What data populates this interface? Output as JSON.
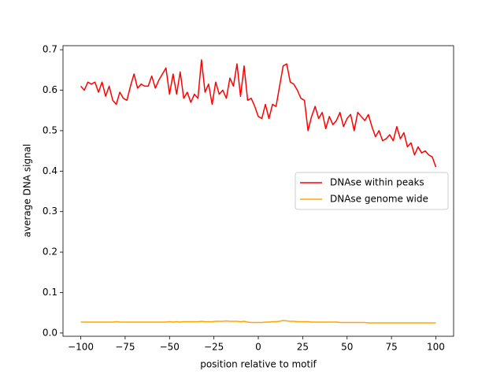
{
  "chart_data": {
    "type": "line",
    "xlabel": "position relative to motif",
    "ylabel": "average DNA signal",
    "x": [
      -100,
      -98,
      -96,
      -94,
      -92,
      -90,
      -88,
      -86,
      -84,
      -82,
      -80,
      -78,
      -76,
      -74,
      -72,
      -70,
      -68,
      -66,
      -64,
      -62,
      -60,
      -58,
      -56,
      -54,
      -52,
      -50,
      -48,
      -46,
      -44,
      -42,
      -40,
      -38,
      -36,
      -34,
      -32,
      -30,
      -28,
      -26,
      -24,
      -22,
      -20,
      -18,
      -16,
      -14,
      -12,
      -10,
      -8,
      -6,
      -4,
      -2,
      0,
      2,
      4,
      6,
      8,
      10,
      12,
      14,
      16,
      18,
      20,
      22,
      24,
      26,
      28,
      30,
      32,
      34,
      36,
      38,
      40,
      42,
      44,
      46,
      48,
      50,
      52,
      54,
      56,
      58,
      60,
      62,
      64,
      66,
      68,
      70,
      72,
      74,
      76,
      78,
      80,
      82,
      84,
      86,
      88,
      90,
      92,
      94,
      96,
      98,
      100
    ],
    "series": [
      {
        "name": "DNAse within peaks",
        "color": "#ff0000",
        "values": [
          0.61,
          0.6,
          0.62,
          0.615,
          0.62,
          0.595,
          0.62,
          0.585,
          0.61,
          0.575,
          0.565,
          0.595,
          0.58,
          0.575,
          0.61,
          0.64,
          0.605,
          0.615,
          0.61,
          0.61,
          0.635,
          0.605,
          0.625,
          0.64,
          0.655,
          0.59,
          0.64,
          0.59,
          0.645,
          0.58,
          0.595,
          0.57,
          0.59,
          0.58,
          0.675,
          0.595,
          0.615,
          0.565,
          0.62,
          0.59,
          0.6,
          0.58,
          0.63,
          0.61,
          0.665,
          0.585,
          0.66,
          0.575,
          0.58,
          0.56,
          0.535,
          0.53,
          0.565,
          0.53,
          0.565,
          0.56,
          0.61,
          0.66,
          0.665,
          0.62,
          0.615,
          0.6,
          0.58,
          0.575,
          0.5,
          0.535,
          0.56,
          0.53,
          0.545,
          0.505,
          0.535,
          0.515,
          0.525,
          0.545,
          0.51,
          0.53,
          0.54,
          0.5,
          0.545,
          0.535,
          0.525,
          0.54,
          0.51,
          0.485,
          0.5,
          0.475,
          0.48,
          0.49,
          0.475,
          0.51,
          0.48,
          0.495,
          0.46,
          0.47,
          0.44,
          0.46,
          0.445,
          0.45,
          0.44,
          0.435,
          0.41
        ]
      },
      {
        "name": "DNAse genome wide",
        "color": "#ffa500",
        "values": [
          0.027,
          0.027,
          0.027,
          0.027,
          0.027,
          0.027,
          0.027,
          0.027,
          0.027,
          0.027,
          0.028,
          0.027,
          0.027,
          0.027,
          0.027,
          0.027,
          0.027,
          0.027,
          0.027,
          0.027,
          0.027,
          0.027,
          0.027,
          0.027,
          0.027,
          0.028,
          0.027,
          0.028,
          0.027,
          0.028,
          0.028,
          0.028,
          0.028,
          0.028,
          0.029,
          0.028,
          0.028,
          0.028,
          0.029,
          0.029,
          0.029,
          0.03,
          0.029,
          0.029,
          0.029,
          0.028,
          0.029,
          0.027,
          0.026,
          0.026,
          0.026,
          0.026,
          0.027,
          0.027,
          0.028,
          0.028,
          0.029,
          0.031,
          0.03,
          0.029,
          0.029,
          0.028,
          0.028,
          0.028,
          0.028,
          0.027,
          0.027,
          0.027,
          0.027,
          0.027,
          0.027,
          0.027,
          0.027,
          0.026,
          0.026,
          0.026,
          0.026,
          0.026,
          0.026,
          0.026,
          0.026,
          0.025,
          0.025,
          0.025,
          0.025,
          0.025,
          0.025,
          0.025,
          0.025,
          0.025,
          0.025,
          0.025,
          0.025,
          0.025,
          0.025,
          0.025,
          0.025,
          0.025,
          0.025,
          0.025,
          0.025
        ]
      }
    ],
    "xlim": [
      -110,
      110
    ],
    "xticks": [
      {
        "value": -100,
        "label": "−100"
      },
      {
        "value": -75,
        "label": "−75"
      },
      {
        "value": -50,
        "label": "−50"
      },
      {
        "value": -25,
        "label": "−25"
      },
      0,
      25,
      50,
      75,
      100
    ],
    "ylim": [
      -0.008,
      0.71
    ],
    "yticks": [
      {
        "value": 0,
        "label": "0.0"
      },
      0.1,
      0.2,
      0.3,
      0.4,
      0.5,
      0.6,
      0.7
    ],
    "grid": false,
    "legend": "center right"
  }
}
